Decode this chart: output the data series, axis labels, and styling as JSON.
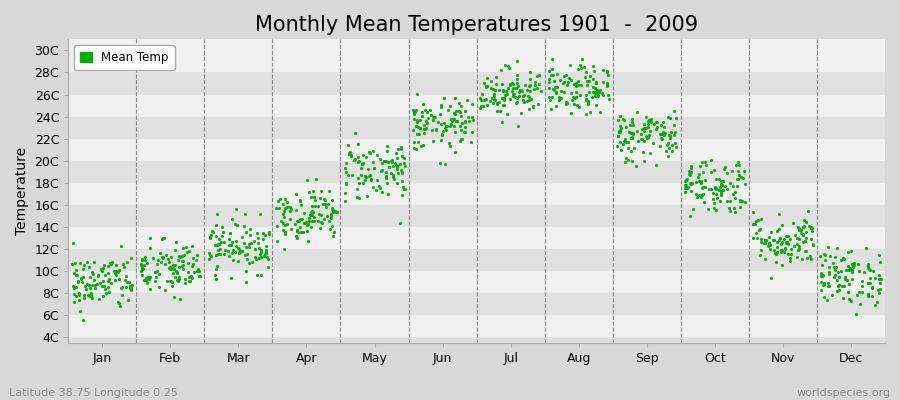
{
  "title": "Monthly Mean Temperatures 1901  -  2009",
  "ylabel": "Temperature",
  "ytick_labels": [
    "4C",
    "6C",
    "8C",
    "10C",
    "12C",
    "14C",
    "16C",
    "18C",
    "20C",
    "22C",
    "24C",
    "26C",
    "28C",
    "30C"
  ],
  "ytick_values": [
    4,
    6,
    8,
    10,
    12,
    14,
    16,
    18,
    20,
    22,
    24,
    26,
    28,
    30
  ],
  "ylim": [
    3.5,
    31.0
  ],
  "month_names": [
    "Jan",
    "Feb",
    "Mar",
    "Apr",
    "May",
    "Jun",
    "Jul",
    "Aug",
    "Sep",
    "Oct",
    "Nov",
    "Dec"
  ],
  "monthly_means": [
    9.0,
    10.2,
    12.3,
    15.2,
    19.2,
    23.2,
    26.3,
    26.4,
    22.3,
    17.8,
    12.8,
    9.5
  ],
  "monthly_stds": [
    1.3,
    1.3,
    1.2,
    1.2,
    1.4,
    1.2,
    1.1,
    1.1,
    1.2,
    1.3,
    1.2,
    1.3
  ],
  "n_years": 109,
  "scatter_color": "#00aa00",
  "scatter_size": 5,
  "band_color_light": "#f0f0f0",
  "band_color_dark": "#e0e0e0",
  "outer_bg": "#d8d8d8",
  "dashed_color": "#888888",
  "title_fontsize": 15,
  "axis_label_fontsize": 10,
  "tick_fontsize": 9,
  "legend_label": "Mean Temp",
  "subtitle_left": "Latitude 38.75 Longitude 0.25",
  "subtitle_right": "worldspecies.org"
}
